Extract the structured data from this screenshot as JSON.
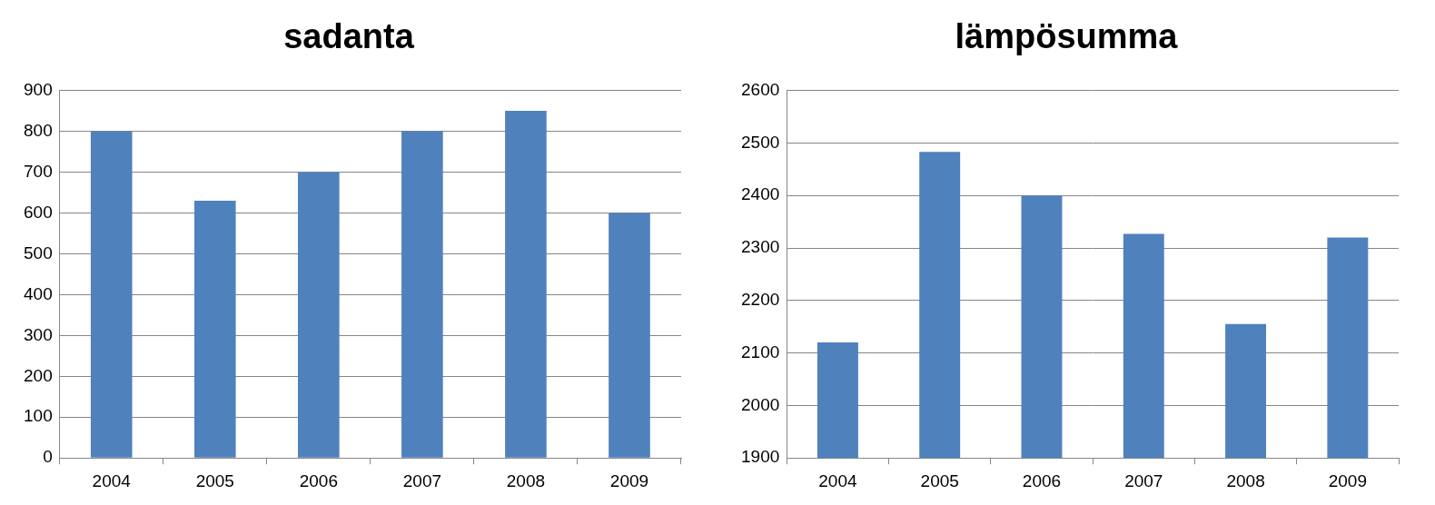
{
  "chart_data": [
    {
      "type": "bar",
      "title": "sadanta",
      "categories": [
        "2004",
        "2005",
        "2006",
        "2007",
        "2008",
        "2009"
      ],
      "values": [
        800,
        630,
        700,
        800,
        850,
        600
      ],
      "color": "#4f81bd",
      "ylim": [
        0,
        900
      ],
      "yticks": [
        0,
        100,
        200,
        300,
        400,
        500,
        600,
        700,
        800,
        900
      ],
      "grid": true
    },
    {
      "type": "bar",
      "title": "lämpösumma",
      "categories": [
        "2004",
        "2005",
        "2006",
        "2007",
        "2008",
        "2009"
      ],
      "values": [
        2120,
        2483,
        2400,
        2327,
        2155,
        2320
      ],
      "color": "#4f81bd",
      "ylim": [
        1900,
        2600
      ],
      "yticks": [
        1900,
        2000,
        2100,
        2200,
        2300,
        2400,
        2500,
        2600
      ],
      "grid": true
    }
  ]
}
